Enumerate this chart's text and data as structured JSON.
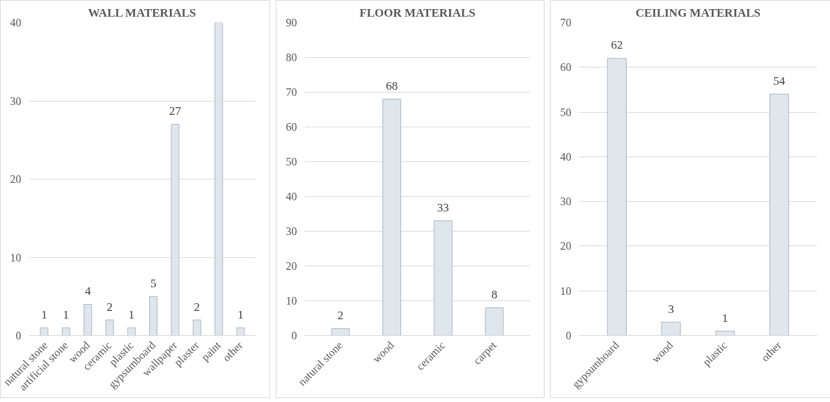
{
  "chart_data": [
    {
      "type": "bar",
      "title": "WALL MATERIALS",
      "categories": [
        "natural stone",
        "artificial stone",
        "wood",
        "ceramic",
        "plastic",
        "gypsumboard",
        "wallpaper",
        "plaster",
        "paint",
        "other"
      ],
      "values": [
        1,
        1,
        4,
        2,
        1,
        5,
        27,
        2,
        40,
        1
      ],
      "value_labels": [
        "1",
        "1",
        "4",
        "2",
        "1",
        "5",
        "27",
        "2",
        null,
        "1"
      ],
      "color": "#dfe6ec",
      "ylim": [
        0,
        40
      ],
      "yticks": [
        0,
        10,
        20,
        30,
        40
      ],
      "grid": "y"
    },
    {
      "type": "bar",
      "title": "FLOOR MATERIALS",
      "categories": [
        "natural stone",
        "wood",
        "ceramic",
        "carpet"
      ],
      "values": [
        2,
        68,
        33,
        8
      ],
      "data_labels": true,
      "color": "#dfe6ec",
      "ylim": [
        0,
        90
      ],
      "yticks": [
        0,
        10,
        20,
        30,
        40,
        50,
        60,
        70,
        80,
        90
      ],
      "grid": "y"
    },
    {
      "type": "bar",
      "title": "CEILING MATERIALS",
      "categories": [
        "gypsumboard",
        "wood",
        "plastic",
        "other"
      ],
      "values": [
        62,
        3,
        1,
        54
      ],
      "data_labels": true,
      "color": "#dfe6ec",
      "ylim": [
        0,
        70
      ],
      "yticks": [
        0,
        10,
        20,
        30,
        40,
        50,
        60,
        70
      ],
      "grid": "y"
    }
  ]
}
